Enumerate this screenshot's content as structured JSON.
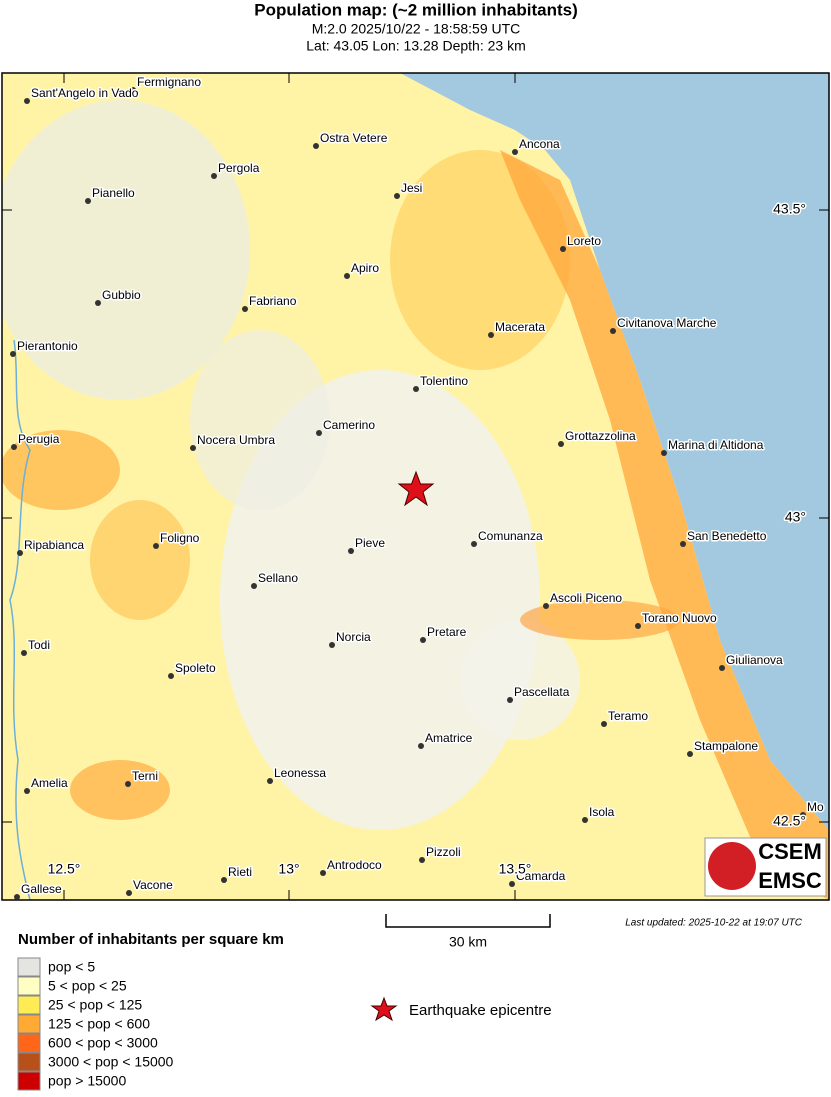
{
  "header": {
    "title": "Population map: (~2 million inhabitants)",
    "line1": "M:2.0 2025/10/22 - 18:58:59 UTC",
    "line2": "Lat: 43.05 Lon: 13.28 Depth: 23 km"
  },
  "map": {
    "cities": [
      "Fermignano",
      "Sant'Angelo in Vado",
      "Ostra Vetere",
      "Ancona",
      "Pergola",
      "Jesi",
      "Pianello",
      "Loreto",
      "Apiro",
      "Gubbio",
      "Fabriano",
      "Macerata",
      "Civitanova Marche",
      "Pierantonio",
      "Tolentino",
      "Camerino",
      "Perugia",
      "Nocera Umbra",
      "Grottazzolina",
      "Marina di Altidona",
      "Foligno",
      "Ripabianca",
      "Pieve",
      "Comunanza",
      "San Benedetto",
      "Sellano",
      "Ascoli Piceno",
      "Torano Nuovo",
      "Todi",
      "Norcia",
      "Pretare",
      "Spoleto",
      "Giulianova",
      "Pascellata",
      "Teramo",
      "Amatrice",
      "Stampalone",
      "Amelia",
      "Terni",
      "Leonessa",
      "Isola",
      "Mo",
      "Rieti",
      "Antrodoco",
      "Pizzoli",
      "Camarda",
      "Vacone",
      "Gallese"
    ],
    "lat_labels": [
      "43.5°",
      "43°",
      "42.5°"
    ],
    "lon_labels": [
      "12.5°",
      "13°",
      "13.5°"
    ],
    "scale": "30 km",
    "last_updated": "Last updated: 2025-10-22 at 19:07 UTC"
  },
  "legend": {
    "title": "Number of inhabitants per square km",
    "items": [
      {
        "label": "pop < 5",
        "color": "#e4e4e0"
      },
      {
        "label": "5 < pop < 25",
        "color": "#ffffc4"
      },
      {
        "label": "25 < pop < 125",
        "color": "#ffec55"
      },
      {
        "label": "125 < pop < 600",
        "color": "#ffaa33"
      },
      {
        "label": "600 < pop < 3000",
        "color": "#ff661a"
      },
      {
        "label": "3000 < pop < 15000",
        "color": "#b8501c"
      },
      {
        "label": "pop > 15000",
        "color": "#cc0000"
      }
    ],
    "epicentre": "Earthquake epicentre"
  },
  "logo": {
    "top": "CSEM",
    "bottom": "EMSC"
  }
}
